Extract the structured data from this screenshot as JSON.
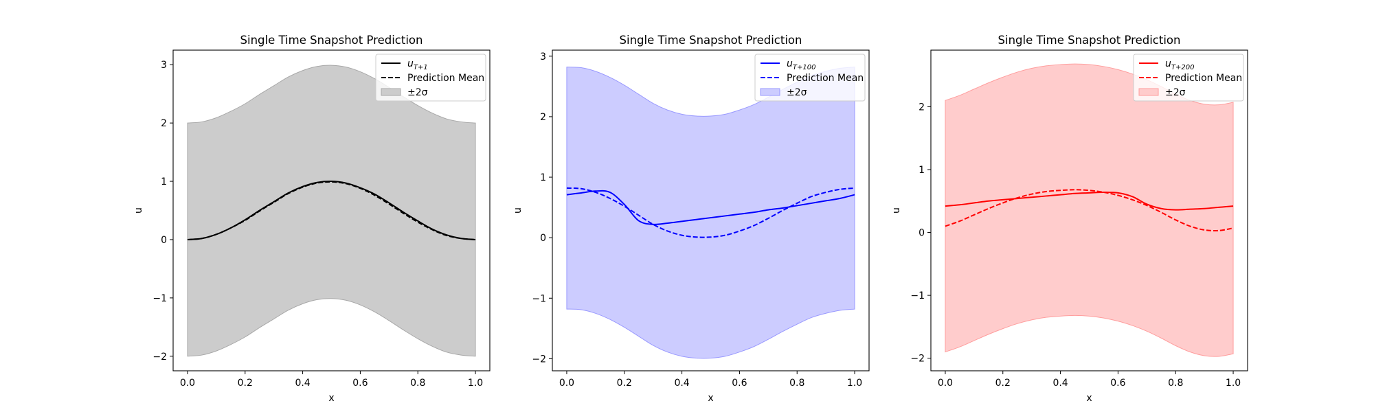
{
  "chart_data": [
    {
      "type": "line",
      "title": "Single Time Snapshot Prediction",
      "xlabel": "x",
      "ylabel": "u",
      "xlim": [
        -0.05,
        1.05
      ],
      "ylim": [
        -2.25,
        3.25
      ],
      "xticks": [
        0.0,
        0.2,
        0.4,
        0.6,
        0.8,
        1.0
      ],
      "xtick_labels": [
        "0.0",
        "0.2",
        "0.4",
        "0.6",
        "0.8",
        "1.0"
      ],
      "yticks": [
        -2,
        -1,
        0,
        1,
        2,
        3
      ],
      "ytick_labels": [
        "−2",
        "−1",
        "0",
        "1",
        "2",
        "3"
      ],
      "color": "#000000",
      "legend_placement": "top-right",
      "x": [
        0.0,
        0.05,
        0.1,
        0.15,
        0.2,
        0.25,
        0.3,
        0.35,
        0.4,
        0.45,
        0.5,
        0.55,
        0.6,
        0.65,
        0.7,
        0.75,
        0.8,
        0.85,
        0.9,
        0.95,
        1.0
      ],
      "series": [
        {
          "legend": {
            "main": "u",
            "sub": "T+1"
          },
          "style": "solid",
          "values": [
            0.0,
            0.02,
            0.09,
            0.2,
            0.34,
            0.5,
            0.65,
            0.8,
            0.91,
            0.98,
            1.0,
            0.97,
            0.89,
            0.78,
            0.63,
            0.47,
            0.32,
            0.18,
            0.08,
            0.02,
            0.0
          ]
        },
        {
          "legend": {
            "main": "Prediction Mean",
            "sub": ""
          },
          "style": "dashed",
          "values": [
            0.0,
            0.02,
            0.09,
            0.2,
            0.33,
            0.49,
            0.64,
            0.79,
            0.9,
            0.97,
            0.99,
            0.96,
            0.88,
            0.76,
            0.61,
            0.45,
            0.3,
            0.17,
            0.07,
            0.02,
            0.0
          ]
        }
      ],
      "band": {
        "legend": "±2σ",
        "fill": "#cccccc",
        "edge": "#a8a8a8",
        "sigma": [
          1.0,
          1.0,
          1.0,
          1.0,
          1.0,
          1.0,
          1.0,
          1.0,
          1.0,
          1.0,
          1.0,
          1.0,
          1.0,
          1.0,
          1.0,
          1.0,
          1.0,
          1.0,
          1.0,
          1.0,
          1.0
        ]
      }
    },
    {
      "type": "line",
      "title": "Single Time Snapshot Prediction",
      "xlabel": "x",
      "ylabel": "u",
      "xlim": [
        -0.05,
        1.05
      ],
      "ylim": [
        -2.2,
        3.1
      ],
      "xticks": [
        0.0,
        0.2,
        0.4,
        0.6,
        0.8,
        1.0
      ],
      "xtick_labels": [
        "0.0",
        "0.2",
        "0.4",
        "0.6",
        "0.8",
        "1.0"
      ],
      "yticks": [
        -2,
        -1,
        0,
        1,
        2,
        3
      ],
      "ytick_labels": [
        "−2",
        "−1",
        "0",
        "1",
        "2",
        "3"
      ],
      "color": "#0000ff",
      "legend_placement": "top-right",
      "x": [
        0.0,
        0.05,
        0.1,
        0.15,
        0.2,
        0.25,
        0.3,
        0.35,
        0.4,
        0.45,
        0.5,
        0.55,
        0.6,
        0.65,
        0.7,
        0.75,
        0.8,
        0.85,
        0.9,
        0.95,
        1.0
      ],
      "series": [
        {
          "legend": {
            "main": "u",
            "sub": "T+100"
          },
          "style": "solid",
          "values": [
            0.71,
            0.74,
            0.77,
            0.75,
            0.55,
            0.28,
            0.22,
            0.24,
            0.27,
            0.3,
            0.33,
            0.36,
            0.39,
            0.42,
            0.46,
            0.49,
            0.53,
            0.57,
            0.61,
            0.65,
            0.71
          ]
        },
        {
          "legend": {
            "main": "Prediction Mean",
            "sub": ""
          },
          "style": "dashed",
          "values": [
            0.82,
            0.81,
            0.75,
            0.65,
            0.52,
            0.37,
            0.22,
            0.11,
            0.04,
            0.01,
            0.01,
            0.04,
            0.11,
            0.2,
            0.32,
            0.45,
            0.57,
            0.68,
            0.75,
            0.8,
            0.82
          ]
        }
      ],
      "band": {
        "legend": "±2σ",
        "fill": "#ccccff",
        "edge": "#9999ff",
        "sigma": [
          1.0,
          1.0,
          1.0,
          1.0,
          1.0,
          1.0,
          1.0,
          1.0,
          1.0,
          1.0,
          1.0,
          1.0,
          1.0,
          1.0,
          1.0,
          1.0,
          1.0,
          1.0,
          1.0,
          1.0,
          1.0
        ]
      }
    },
    {
      "type": "line",
      "title": "Single Time Snapshot Prediction",
      "xlabel": "x",
      "ylabel": "u",
      "xlim": [
        -0.05,
        1.05
      ],
      "ylim": [
        -2.2,
        2.9
      ],
      "xticks": [
        0.0,
        0.2,
        0.4,
        0.6,
        0.8,
        1.0
      ],
      "xtick_labels": [
        "0.0",
        "0.2",
        "0.4",
        "0.6",
        "0.8",
        "1.0"
      ],
      "yticks": [
        -2,
        -1,
        0,
        1,
        2
      ],
      "ytick_labels": [
        "−2",
        "−1",
        "0",
        "1",
        "2"
      ],
      "color": "#ff0000",
      "legend_placement": "top-right",
      "x": [
        0.0,
        0.05,
        0.1,
        0.15,
        0.2,
        0.25,
        0.3,
        0.35,
        0.4,
        0.45,
        0.5,
        0.55,
        0.6,
        0.65,
        0.7,
        0.75,
        0.8,
        0.85,
        0.9,
        0.95,
        1.0
      ],
      "series": [
        {
          "legend": {
            "main": "u",
            "sub": "T+200"
          },
          "style": "solid",
          "values": [
            0.42,
            0.44,
            0.47,
            0.5,
            0.52,
            0.54,
            0.56,
            0.58,
            0.6,
            0.62,
            0.63,
            0.64,
            0.63,
            0.57,
            0.45,
            0.38,
            0.36,
            0.37,
            0.38,
            0.4,
            0.42
          ]
        },
        {
          "legend": {
            "main": "Prediction Mean",
            "sub": ""
          },
          "style": "dashed",
          "values": [
            0.1,
            0.18,
            0.28,
            0.38,
            0.47,
            0.55,
            0.61,
            0.65,
            0.67,
            0.68,
            0.67,
            0.64,
            0.59,
            0.52,
            0.43,
            0.32,
            0.2,
            0.1,
            0.04,
            0.03,
            0.07
          ]
        }
      ],
      "band": {
        "legend": "±2σ",
        "fill": "#ffcccc",
        "edge": "#ff9d9d",
        "sigma": [
          1.0,
          1.0,
          1.0,
          1.0,
          1.0,
          1.0,
          1.0,
          1.0,
          1.0,
          1.0,
          1.0,
          1.0,
          1.0,
          1.0,
          1.0,
          1.0,
          1.0,
          1.0,
          1.0,
          1.0,
          1.0
        ]
      }
    }
  ]
}
